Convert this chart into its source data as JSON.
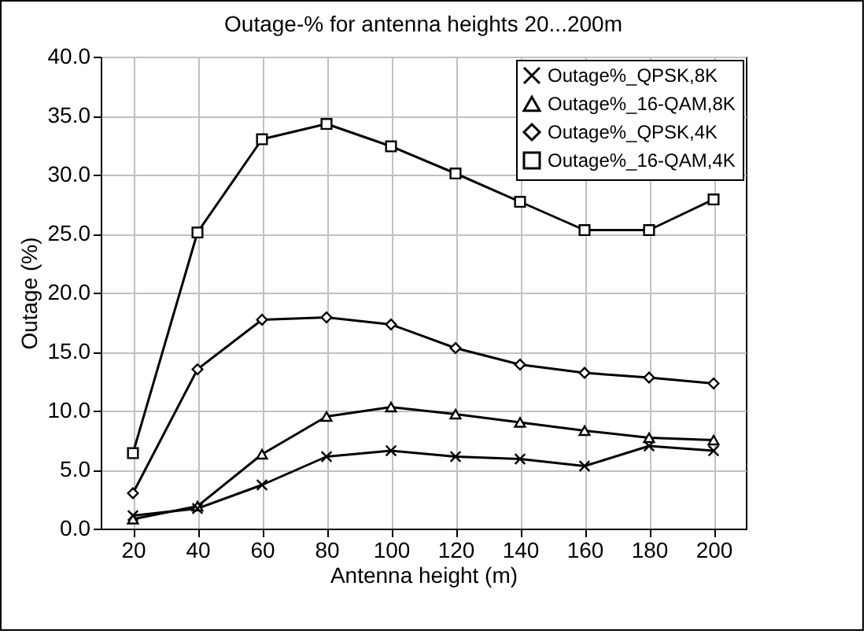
{
  "chart_data": {
    "type": "line",
    "title": "Outage-% for antenna heights 20...200m",
    "xlabel": "Antenna height (m)",
    "ylabel": "Outage (%)",
    "categories": [
      "20",
      "40",
      "60",
      "80",
      "100",
      "120",
      "140",
      "160",
      "180",
      "200"
    ],
    "series": [
      {
        "name": "Outage%_QPSK,8K",
        "color": "#000000",
        "marker": "cross",
        "values": [
          1.1,
          1.7,
          3.7,
          6.1,
          6.6,
          6.1,
          5.9,
          5.3,
          7.0,
          6.6
        ]
      },
      {
        "name": "Outage%_16-QAM,8K",
        "color": "#000000",
        "marker": "triangle",
        "values": [
          0.8,
          1.9,
          6.3,
          9.5,
          10.3,
          9.7,
          9.0,
          8.3,
          7.7,
          7.5
        ]
      },
      {
        "name": "Outage%_QPSK,4K",
        "color": "#000000",
        "marker": "diamond",
        "values": [
          3.0,
          13.5,
          17.7,
          17.9,
          17.3,
          15.3,
          13.9,
          13.2,
          12.8,
          12.3
        ]
      },
      {
        "name": "Outage%_16-QAM,4K",
        "color": "#000000",
        "marker": "square",
        "values": [
          6.4,
          25.1,
          33.0,
          34.3,
          32.4,
          30.1,
          27.7,
          25.3,
          25.3,
          27.9
        ]
      }
    ],
    "ylim": [
      0,
      40
    ],
    "yticks": [
      {
        "value": 0,
        "label": "0.0"
      },
      {
        "value": 5,
        "label": "5.0"
      },
      {
        "value": 10,
        "label": "10.0"
      },
      {
        "value": 15,
        "label": "15.0"
      },
      {
        "value": 20,
        "label": "20.0"
      },
      {
        "value": 25,
        "label": "25.0"
      },
      {
        "value": 30,
        "label": "30.0"
      },
      {
        "value": 35,
        "label": "35.0"
      },
      {
        "value": 40,
        "label": "40.0"
      }
    ],
    "grid": true,
    "legend": "top right",
    "line_style": "solid"
  }
}
